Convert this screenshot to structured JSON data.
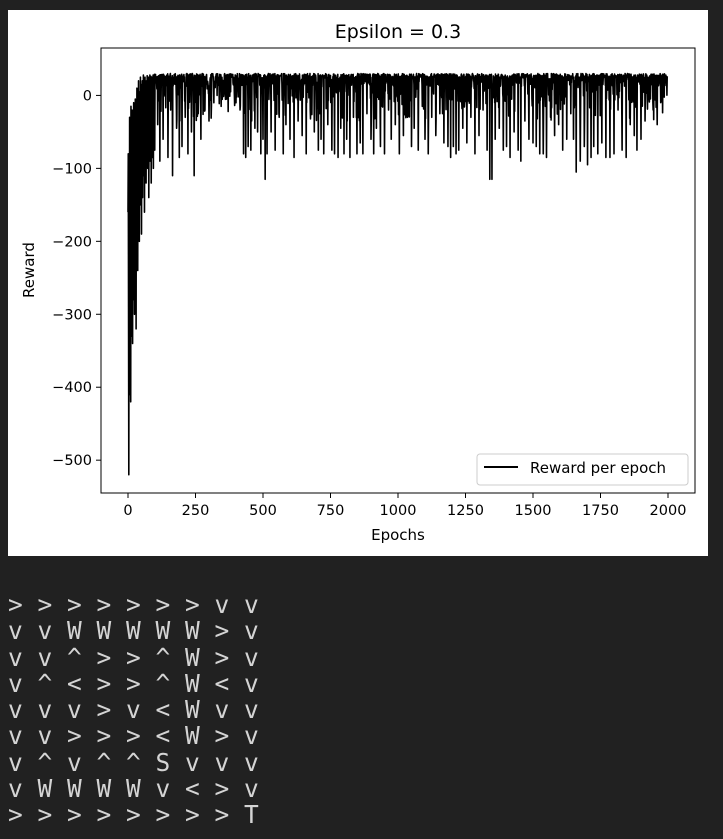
{
  "chart_data": {
    "type": "line",
    "title": "Epsilon = 0.3",
    "xlabel": "Epochs",
    "ylabel": "Reward",
    "xlim": [
      -100,
      2100
    ],
    "ylim": [
      -545,
      65
    ],
    "xticks": [
      0,
      250,
      500,
      750,
      1000,
      1250,
      1500,
      1750,
      2000
    ],
    "xtick_labels": [
      "0",
      "250",
      "500",
      "750",
      "1000",
      "1250",
      "1500",
      "1750",
      "2000"
    ],
    "yticks": [
      0,
      -100,
      -200,
      -300,
      -400,
      -500
    ],
    "ytick_labels": [
      "0",
      "−100",
      "−200",
      "−300",
      "−400",
      "−500"
    ],
    "grid": false,
    "legend_position": "lower-right",
    "series": [
      {
        "name": "Reward per epoch",
        "color": "#000000",
        "n_points": 2000,
        "baseline_reward": 30,
        "early_phase": {
          "points": [
            [
              0,
              -160
            ],
            [
              1,
              -80
            ],
            [
              2,
              -290
            ],
            [
              3,
              -520
            ],
            [
              4,
              -140
            ],
            [
              5,
              -350
            ],
            [
              6,
              -30
            ],
            [
              7,
              -410
            ],
            [
              8,
              -60
            ],
            [
              9,
              -200
            ],
            [
              10,
              -420
            ],
            [
              11,
              -15
            ],
            [
              12,
              -250
            ],
            [
              13,
              -100
            ],
            [
              14,
              -330
            ],
            [
              15,
              -20
            ],
            [
              16,
              -180
            ],
            [
              17,
              -340
            ],
            [
              18,
              -50
            ],
            [
              19,
              -280
            ],
            [
              20,
              -120
            ],
            [
              21,
              -10
            ],
            [
              22,
              -230
            ],
            [
              23,
              -90
            ],
            [
              24,
              -300
            ],
            [
              25,
              -40
            ],
            [
              26,
              -160
            ],
            [
              27,
              -5
            ],
            [
              28,
              -210
            ],
            [
              29,
              -70
            ],
            [
              30,
              -320
            ],
            [
              31,
              -25
            ],
            [
              32,
              -130
            ],
            [
              33,
              10
            ],
            [
              34,
              -190
            ],
            [
              35,
              -60
            ],
            [
              36,
              -240
            ],
            [
              37,
              -20
            ],
            [
              38,
              -110
            ],
            [
              39,
              20
            ],
            [
              40,
              -170
            ],
            [
              41,
              -45
            ],
            [
              42,
              -200
            ],
            [
              43,
              5
            ],
            [
              44,
              -95
            ],
            [
              45,
              -150
            ],
            [
              46,
              25
            ],
            [
              47,
              -60
            ],
            [
              48,
              -120
            ],
            [
              49,
              15
            ],
            [
              50,
              -190
            ],
            [
              51,
              -30
            ],
            [
              52,
              -80
            ],
            [
              53,
              20
            ],
            [
              54,
              -140
            ],
            [
              55,
              -10
            ],
            [
              56,
              -70
            ],
            [
              57,
              28
            ],
            [
              58,
              -110
            ],
            [
              59,
              -40
            ],
            [
              60,
              10
            ],
            [
              61,
              -160
            ],
            [
              62,
              -20
            ],
            [
              63,
              25
            ],
            [
              64,
              -90
            ],
            [
              65,
              -50
            ],
            [
              66,
              15
            ],
            [
              67,
              -120
            ],
            [
              68,
              20
            ],
            [
              69,
              -30
            ],
            [
              70,
              -80
            ],
            [
              71,
              27
            ],
            [
              72,
              -60
            ],
            [
              73,
              -100
            ],
            [
              74,
              18
            ],
            [
              75,
              -40
            ],
            [
              76,
              25
            ],
            [
              77,
              -140
            ],
            [
              78,
              -15
            ],
            [
              79,
              22
            ],
            [
              80,
              -70
            ],
            [
              81,
              28
            ],
            [
              82,
              -90
            ],
            [
              83,
              10
            ],
            [
              84,
              -30
            ],
            [
              85,
              26
            ],
            [
              86,
              -120
            ],
            [
              87,
              20
            ],
            [
              88,
              -50
            ],
            [
              89,
              25
            ],
            [
              90,
              -85
            ],
            [
              91,
              15
            ],
            [
              92,
              -20
            ],
            [
              93,
              28
            ],
            [
              94,
              -100
            ],
            [
              95,
              24
            ],
            [
              96,
              -60
            ],
            [
              97,
              18
            ],
            [
              98,
              29
            ],
            [
              99,
              -75
            ],
            [
              100,
              25
            ]
          ]
        },
        "dips": [
          [
            110,
            -40
          ],
          [
            118,
            -90
          ],
          [
            130,
            -60
          ],
          [
            148,
            -85
          ],
          [
            158,
            -20
          ],
          [
            165,
            -110
          ],
          [
            180,
            -45
          ],
          [
            190,
            -85
          ],
          [
            200,
            -70
          ],
          [
            212,
            -30
          ],
          [
            222,
            -80
          ],
          [
            235,
            -50
          ],
          [
            245,
            -110
          ],
          [
            260,
            -25
          ],
          [
            270,
            -60
          ],
          [
            285,
            -20
          ],
          [
            300,
            -35
          ],
          [
            318,
            -10
          ],
          [
            330,
            0
          ],
          [
            345,
            -15
          ],
          [
            365,
            -5
          ],
          [
            380,
            5
          ],
          [
            400,
            -10
          ],
          [
            415,
            -20
          ],
          [
            428,
            -80
          ],
          [
            436,
            -85
          ],
          [
            445,
            -70
          ],
          [
            455,
            -75
          ],
          [
            470,
            -45
          ],
          [
            480,
            -50
          ],
          [
            492,
            -80
          ],
          [
            500,
            -60
          ],
          [
            508,
            -115
          ],
          [
            515,
            -80
          ],
          [
            530,
            -50
          ],
          [
            545,
            -75
          ],
          [
            560,
            -30
          ],
          [
            575,
            -80
          ],
          [
            585,
            -40
          ],
          [
            600,
            -60
          ],
          [
            615,
            -85
          ],
          [
            630,
            -35
          ],
          [
            645,
            -55
          ],
          [
            660,
            -80
          ],
          [
            675,
            -20
          ],
          [
            690,
            -50
          ],
          [
            705,
            -75
          ],
          [
            715,
            -60
          ],
          [
            725,
            -80
          ],
          [
            740,
            -40
          ],
          [
            755,
            -75
          ],
          [
            765,
            -80
          ],
          [
            778,
            -85
          ],
          [
            788,
            -45
          ],
          [
            800,
            -80
          ],
          [
            810,
            -60
          ],
          [
            822,
            -85
          ],
          [
            835,
            -30
          ],
          [
            848,
            -80
          ],
          [
            860,
            -65
          ],
          [
            870,
            -80
          ],
          [
            885,
            -25
          ],
          [
            900,
            -60
          ],
          [
            910,
            -80
          ],
          [
            920,
            -45
          ],
          [
            935,
            -70
          ],
          [
            950,
            -80
          ],
          [
            965,
            -20
          ],
          [
            975,
            -60
          ],
          [
            990,
            -40
          ],
          [
            1005,
            -80
          ],
          [
            1020,
            -55
          ],
          [
            1035,
            -30
          ],
          [
            1050,
            -70
          ],
          [
            1060,
            -45
          ],
          [
            1075,
            -75
          ],
          [
            1090,
            -15
          ],
          [
            1100,
            -60
          ],
          [
            1112,
            -80
          ],
          [
            1125,
            -30
          ],
          [
            1140,
            -55
          ],
          [
            1155,
            -25
          ],
          [
            1170,
            -65
          ],
          [
            1185,
            -70
          ],
          [
            1195,
            -85
          ],
          [
            1205,
            -70
          ],
          [
            1215,
            -80
          ],
          [
            1225,
            -75
          ],
          [
            1240,
            -45
          ],
          [
            1255,
            -65
          ],
          [
            1270,
            -30
          ],
          [
            1285,
            -80
          ],
          [
            1300,
            -55
          ],
          [
            1315,
            -20
          ],
          [
            1330,
            -75
          ],
          [
            1340,
            -115
          ],
          [
            1348,
            -115
          ],
          [
            1360,
            -60
          ],
          [
            1375,
            -45
          ],
          [
            1390,
            -75
          ],
          [
            1402,
            -70
          ],
          [
            1415,
            -85
          ],
          [
            1430,
            -50
          ],
          [
            1445,
            -75
          ],
          [
            1455,
            -90
          ],
          [
            1470,
            -35
          ],
          [
            1485,
            -60
          ],
          [
            1500,
            -65
          ],
          [
            1512,
            -70
          ],
          [
            1525,
            -80
          ],
          [
            1538,
            -80
          ],
          [
            1550,
            -85
          ],
          [
            1565,
            -30
          ],
          [
            1580,
            -55
          ],
          [
            1595,
            -40
          ],
          [
            1610,
            -75
          ],
          [
            1625,
            -60
          ],
          [
            1640,
            -25
          ],
          [
            1650,
            -60
          ],
          [
            1660,
            -105
          ],
          [
            1675,
            -90
          ],
          [
            1690,
            -70
          ],
          [
            1702,
            -95
          ],
          [
            1715,
            -85
          ],
          [
            1725,
            -70
          ],
          [
            1740,
            -80
          ],
          [
            1755,
            -65
          ],
          [
            1770,
            -85
          ],
          [
            1785,
            -85
          ],
          [
            1800,
            -80
          ],
          [
            1815,
            -20
          ],
          [
            1830,
            -75
          ],
          [
            1845,
            -85
          ],
          [
            1860,
            -40
          ],
          [
            1875,
            -55
          ],
          [
            1885,
            -75
          ],
          [
            1900,
            -60
          ],
          [
            1915,
            -35
          ],
          [
            1930,
            -5
          ],
          [
            1945,
            -20
          ],
          [
            1960,
            -40
          ],
          [
            1975,
            10
          ],
          [
            1990,
            20
          ]
        ]
      }
    ]
  },
  "policy_grid": {
    "rows": [
      [
        "> > > > > > > v v"
      ],
      [
        "v v W W W W W > v"
      ],
      [
        "v v ^ > > ^ W > v"
      ],
      [
        "v ^ < > > ^ W < v"
      ],
      [
        "v v v > v < W v v"
      ],
      [
        "v v > > > < W > v"
      ],
      [
        "v ^ v ^ ^ S v v v"
      ],
      [
        "v W W W W v < > v"
      ],
      [
        "> > > > > > > > T"
      ]
    ]
  }
}
